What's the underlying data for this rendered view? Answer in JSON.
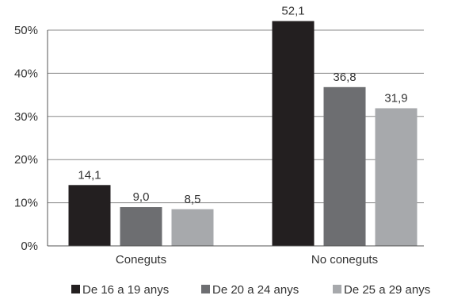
{
  "chart_data": {
    "type": "bar",
    "title": "",
    "xlabel": "",
    "ylabel": "",
    "ylim": [
      0,
      50
    ],
    "yticks": [
      "0%",
      "10%",
      "20%",
      "30%",
      "40%",
      "50%"
    ],
    "ytick_values": [
      0,
      10,
      20,
      30,
      40,
      50
    ],
    "categories": [
      "Coneguts",
      "No coneguts"
    ],
    "series": [
      {
        "name": "De 16 a 19 anys",
        "color": "#231f20",
        "values": [
          14.1,
          52.1
        ],
        "labels": [
          "14,1",
          "52,1"
        ]
      },
      {
        "name": "De 20 a 24 anys",
        "color": "#6d6e71",
        "values": [
          9.0,
          36.8
        ],
        "labels": [
          "9,0",
          "36,8"
        ]
      },
      {
        "name": "De 25 a 29 anys",
        "color": "#a7a9ac",
        "values": [
          8.5,
          31.9
        ],
        "labels": [
          "8,5",
          "31,9"
        ]
      }
    ],
    "grid": true,
    "legend_position": "bottom"
  }
}
